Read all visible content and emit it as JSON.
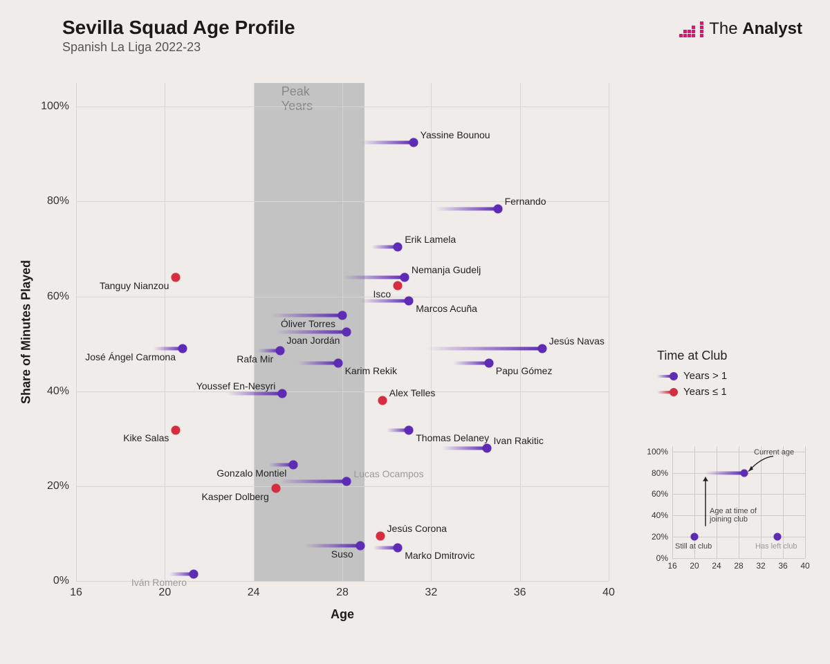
{
  "title": "Sevilla Squad Age Profile",
  "subtitle": "Spanish La Liga 2022-23",
  "brand": {
    "name": "The Analyst",
    "accent": "#d31a6d",
    "text": "#1a1a1a"
  },
  "colors": {
    "purple": "#5e2bb5",
    "red": "#d72d40",
    "grid": "#d8d4d0",
    "band": "#c3c3c3",
    "text": "#222222",
    "left_club_text": "#9a9a9a",
    "background": "#f0ecea"
  },
  "axes": {
    "x": {
      "label": "Age",
      "min": 16,
      "max": 40,
      "ticks": [
        16,
        20,
        24,
        28,
        32,
        36,
        40
      ]
    },
    "y": {
      "label": "Share of Minutes Played",
      "min": 0,
      "max": 105,
      "ticks": [
        0,
        20,
        40,
        60,
        80,
        100
      ],
      "suffix": "%"
    },
    "peak_band": {
      "from": 24,
      "to": 29,
      "label": "Peak Years"
    }
  },
  "legend": {
    "title": "Time at Club",
    "items": [
      {
        "label": "Years > 1",
        "color_key": "purple"
      },
      {
        "label": "Years ≤ 1",
        "color_key": "red"
      }
    ]
  },
  "inset": {
    "x_ticks": [
      16,
      20,
      24,
      28,
      32,
      36,
      40
    ],
    "y_ticks": [
      0,
      20,
      40,
      60,
      80,
      100
    ],
    "current_age_label": "Current age",
    "join_age_label": "Age at time of joining club",
    "still_label": "Still at club",
    "left_label": "Has left club",
    "example": {
      "join_age": 22,
      "current_age": 29,
      "share": 80
    }
  },
  "players": [
    {
      "name": "Yassine Bounou",
      "age": 31.2,
      "join_age": 28.8,
      "share": 92.5,
      "tenure": "gt1",
      "left_club": false,
      "label_side": "right",
      "label_dy": -11
    },
    {
      "name": "Fernando",
      "age": 35.0,
      "join_age": 32.2,
      "share": 78.5,
      "tenure": "gt1",
      "left_club": false,
      "label_side": "right",
      "label_dy": -11
    },
    {
      "name": "Erik Lamela",
      "age": 30.5,
      "join_age": 29.3,
      "share": 70.5,
      "tenure": "gt1",
      "left_club": false,
      "label_side": "right",
      "label_dy": -11
    },
    {
      "name": "Nemanja Gudelj",
      "age": 30.8,
      "join_age": 28.0,
      "share": 64.0,
      "tenure": "gt1",
      "left_club": false,
      "label_side": "right",
      "label_dy": -11
    },
    {
      "name": "Tanguy Nianzou",
      "age": 20.5,
      "join_age": 20.5,
      "share": 64.0,
      "tenure": "le1",
      "left_club": false,
      "label_side": "left",
      "label_dy": 12
    },
    {
      "name": "Isco",
      "age": 30.5,
      "join_age": 30.5,
      "share": 62.2,
      "tenure": "le1",
      "left_club": false,
      "label_side": "left",
      "label_dy": 12
    },
    {
      "name": "Marcos Acuña",
      "age": 31.0,
      "join_age": 28.8,
      "share": 59.0,
      "tenure": "gt1",
      "left_club": false,
      "label_side": "right",
      "label_dy": 11
    },
    {
      "name": "Óliver Torres",
      "age": 28.0,
      "join_age": 24.8,
      "share": 56.0,
      "tenure": "gt1",
      "left_club": false,
      "label_side": "left",
      "label_dy": 12
    },
    {
      "name": "Joan Jordán",
      "age": 28.2,
      "join_age": 25.0,
      "share": 52.5,
      "tenure": "gt1",
      "left_club": false,
      "label_side": "left",
      "label_dy": 12
    },
    {
      "name": "José Ángel Carmona",
      "age": 20.8,
      "join_age": 19.5,
      "share": 49.0,
      "tenure": "gt1",
      "left_club": false,
      "label_side": "left",
      "label_dy": 12
    },
    {
      "name": "Jesús Navas",
      "age": 37.0,
      "join_age": 31.8,
      "share": 49.0,
      "tenure": "gt1",
      "left_club": false,
      "label_side": "right",
      "label_dy": -11
    },
    {
      "name": "Rafa Mir",
      "age": 25.2,
      "join_age": 24.2,
      "share": 48.5,
      "tenure": "gt1",
      "left_club": false,
      "label_side": "left",
      "label_dy": 12
    },
    {
      "name": "Karim Rekik",
      "age": 27.8,
      "join_age": 26.0,
      "share": 46.0,
      "tenure": "gt1",
      "left_club": false,
      "label_side": "right",
      "label_dy": 11
    },
    {
      "name": "Papu Gómez",
      "age": 34.6,
      "join_age": 33.0,
      "share": 46.0,
      "tenure": "gt1",
      "left_club": false,
      "label_side": "right",
      "label_dy": 11
    },
    {
      "name": "Youssef En-Nesyri",
      "age": 25.3,
      "join_age": 22.8,
      "share": 39.5,
      "tenure": "gt1",
      "left_club": false,
      "label_side": "left",
      "label_dy": -11
    },
    {
      "name": "Alex Telles",
      "age": 29.8,
      "join_age": 29.8,
      "share": 38.0,
      "tenure": "le1",
      "left_club": false,
      "label_side": "right",
      "label_dy": -11
    },
    {
      "name": "Thomas Delaney",
      "age": 31.0,
      "join_age": 30.0,
      "share": 31.8,
      "tenure": "gt1",
      "left_club": false,
      "label_side": "right",
      "label_dy": 11
    },
    {
      "name": "Kike Salas",
      "age": 20.5,
      "join_age": 20.5,
      "share": 31.8,
      "tenure": "le1",
      "left_club": false,
      "label_side": "left",
      "label_dy": 11
    },
    {
      "name": "Ivan Rakitic",
      "age": 34.5,
      "join_age": 32.5,
      "share": 28.0,
      "tenure": "gt1",
      "left_club": false,
      "label_side": "right",
      "label_dy": -11
    },
    {
      "name": "Gonzalo Montiel",
      "age": 25.8,
      "join_age": 24.7,
      "share": 24.5,
      "tenure": "gt1",
      "left_club": false,
      "label_side": "left",
      "label_dy": 12
    },
    {
      "name": "Lucas Ocampos",
      "age": 28.2,
      "join_age": 25.2,
      "share": 21.0,
      "tenure": "gt1",
      "left_club": true,
      "label_side": "right",
      "label_dy": -11
    },
    {
      "name": "Kasper Dolberg",
      "age": 25.0,
      "join_age": 25.0,
      "share": 19.5,
      "tenure": "le1",
      "left_club": false,
      "label_side": "left",
      "label_dy": 12
    },
    {
      "name": "Jesús Corona",
      "age": 29.7,
      "join_age": 29.7,
      "share": 9.5,
      "tenure": "le1",
      "left_club": false,
      "label_side": "right",
      "label_dy": -11
    },
    {
      "name": "Suso",
      "age": 28.8,
      "join_age": 26.3,
      "share": 7.5,
      "tenure": "gt1",
      "left_club": false,
      "label_side": "left",
      "label_dy": 12
    },
    {
      "name": "Marko Dmitrovic",
      "age": 30.5,
      "join_age": 29.4,
      "share": 7.0,
      "tenure": "gt1",
      "left_club": false,
      "label_side": "right",
      "label_dy": 11
    },
    {
      "name": "Iván Romero",
      "age": 21.3,
      "join_age": 20.2,
      "share": 1.5,
      "tenure": "gt1",
      "left_club": true,
      "label_side": "left",
      "label_dy": 12
    }
  ]
}
